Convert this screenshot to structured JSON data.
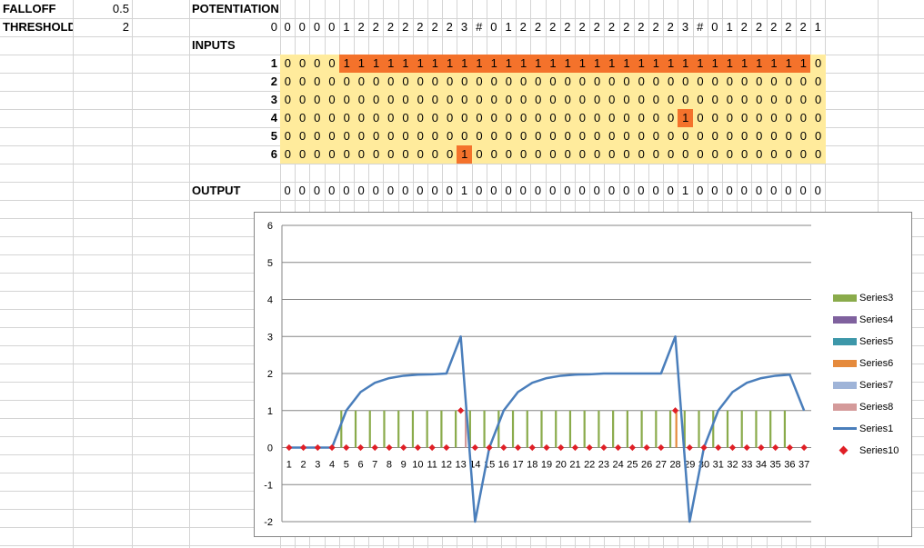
{
  "params": [
    {
      "label": "FALLOFF",
      "value": "0.5"
    },
    {
      "label": "THRESHOLD",
      "value": "2"
    }
  ],
  "potentiation": {
    "label": "POTENTIATION",
    "row_index": "0",
    "values": [
      "0",
      "0",
      "0",
      "0",
      "1",
      "2",
      "2",
      "2",
      "2",
      "2",
      "2",
      "2",
      "3",
      "#",
      "0",
      "1",
      "2",
      "2",
      "2",
      "2",
      "2",
      "2",
      "2",
      "2",
      "2",
      "2",
      "2",
      "3",
      "#",
      "0",
      "1",
      "2",
      "2",
      "2",
      "2",
      "2",
      "1"
    ]
  },
  "inputs": {
    "label": "INPUTS",
    "rows": [
      {
        "index": "1",
        "values": [
          "0",
          "0",
          "0",
          "0",
          "1",
          "1",
          "1",
          "1",
          "1",
          "1",
          "1",
          "1",
          "1",
          "1",
          "1",
          "1",
          "1",
          "1",
          "1",
          "1",
          "1",
          "1",
          "1",
          "1",
          "1",
          "1",
          "1",
          "1",
          "1",
          "1",
          "1",
          "1",
          "1",
          "1",
          "1",
          "1",
          "0"
        ]
      },
      {
        "index": "2",
        "values": [
          "0",
          "0",
          "0",
          "0",
          "0",
          "0",
          "0",
          "0",
          "0",
          "0",
          "0",
          "0",
          "0",
          "0",
          "0",
          "0",
          "0",
          "0",
          "0",
          "0",
          "0",
          "0",
          "0",
          "0",
          "0",
          "0",
          "0",
          "0",
          "0",
          "0",
          "0",
          "0",
          "0",
          "0",
          "0",
          "0",
          "0"
        ]
      },
      {
        "index": "3",
        "values": [
          "0",
          "0",
          "0",
          "0",
          "0",
          "0",
          "0",
          "0",
          "0",
          "0",
          "0",
          "0",
          "0",
          "0",
          "0",
          "0",
          "0",
          "0",
          "0",
          "0",
          "0",
          "0",
          "0",
          "0",
          "0",
          "0",
          "0",
          "0",
          "0",
          "0",
          "0",
          "0",
          "0",
          "0",
          "0",
          "0",
          "0"
        ]
      },
      {
        "index": "4",
        "values": [
          "0",
          "0",
          "0",
          "0",
          "0",
          "0",
          "0",
          "0",
          "0",
          "0",
          "0",
          "0",
          "0",
          "0",
          "0",
          "0",
          "0",
          "0",
          "0",
          "0",
          "0",
          "0",
          "0",
          "0",
          "0",
          "0",
          "0",
          "1",
          "0",
          "0",
          "0",
          "0",
          "0",
          "0",
          "0",
          "0",
          "0"
        ]
      },
      {
        "index": "5",
        "values": [
          "0",
          "0",
          "0",
          "0",
          "0",
          "0",
          "0",
          "0",
          "0",
          "0",
          "0",
          "0",
          "0",
          "0",
          "0",
          "0",
          "0",
          "0",
          "0",
          "0",
          "0",
          "0",
          "0",
          "0",
          "0",
          "0",
          "0",
          "0",
          "0",
          "0",
          "0",
          "0",
          "0",
          "0",
          "0",
          "0",
          "0"
        ]
      },
      {
        "index": "6",
        "values": [
          "0",
          "0",
          "0",
          "0",
          "0",
          "0",
          "0",
          "0",
          "0",
          "0",
          "0",
          "0",
          "1",
          "0",
          "0",
          "0",
          "0",
          "0",
          "0",
          "0",
          "0",
          "0",
          "0",
          "0",
          "0",
          "0",
          "0",
          "0",
          "0",
          "0",
          "0",
          "0",
          "0",
          "0",
          "0",
          "0",
          "0"
        ]
      }
    ]
  },
  "output": {
    "label": "OUTPUT",
    "values": [
      "0",
      "0",
      "0",
      "0",
      "0",
      "0",
      "0",
      "0",
      "0",
      "0",
      "0",
      "0",
      "1",
      "0",
      "0",
      "0",
      "0",
      "0",
      "0",
      "0",
      "0",
      "0",
      "0",
      "0",
      "0",
      "0",
      "0",
      "1",
      "0",
      "0",
      "0",
      "0",
      "0",
      "0",
      "0",
      "0",
      "0"
    ]
  },
  "colors": {
    "input_fill": "#ffeb9c",
    "input_active": "#f4722b",
    "gridline": "#d4d4d4",
    "series1": "#4a7ebb",
    "series10": "#e01f26"
  },
  "chart_data": {
    "type": "line",
    "categories": [
      "1",
      "2",
      "3",
      "4",
      "5",
      "6",
      "7",
      "8",
      "9",
      "10",
      "11",
      "12",
      "13",
      "14",
      "15",
      "16",
      "17",
      "18",
      "19",
      "20",
      "21",
      "22",
      "23",
      "24",
      "25",
      "26",
      "27",
      "28",
      "29",
      "30",
      "31",
      "32",
      "33",
      "34",
      "35",
      "36",
      "37"
    ],
    "ylim": [
      -2,
      6
    ],
    "yticks": [
      "-2",
      "-1",
      "0",
      "1",
      "2",
      "3",
      "4",
      "5",
      "6"
    ],
    "grid": true,
    "legend_position": "right",
    "series": [
      {
        "name": "Series3",
        "kind": "column",
        "color": "#8aab4b",
        "values": [
          0,
          0,
          0,
          0,
          1,
          1,
          1,
          1,
          1,
          1,
          1,
          1,
          1,
          1,
          1,
          1,
          1,
          1,
          1,
          1,
          1,
          1,
          1,
          1,
          1,
          1,
          1,
          1,
          1,
          1,
          1,
          1,
          1,
          1,
          1,
          1,
          0
        ]
      },
      {
        "name": "Series4",
        "kind": "column",
        "color": "#7f619e",
        "values": [
          0,
          0,
          0,
          0,
          0,
          0,
          0,
          0,
          0,
          0,
          0,
          0,
          0,
          0,
          0,
          0,
          0,
          0,
          0,
          0,
          0,
          0,
          0,
          0,
          0,
          0,
          0,
          0,
          0,
          0,
          0,
          0,
          0,
          0,
          0,
          0,
          0
        ]
      },
      {
        "name": "Series5",
        "kind": "column",
        "color": "#3d97a9",
        "values": [
          0,
          0,
          0,
          0,
          0,
          0,
          0,
          0,
          0,
          0,
          0,
          0,
          0,
          0,
          0,
          0,
          0,
          0,
          0,
          0,
          0,
          0,
          0,
          0,
          0,
          0,
          0,
          0,
          0,
          0,
          0,
          0,
          0,
          0,
          0,
          0,
          0
        ]
      },
      {
        "name": "Series6",
        "kind": "column",
        "color": "#e58a3c",
        "values": [
          0,
          0,
          0,
          0,
          0,
          0,
          0,
          0,
          0,
          0,
          0,
          0,
          0,
          0,
          0,
          0,
          0,
          0,
          0,
          0,
          0,
          0,
          0,
          0,
          0,
          0,
          0,
          1,
          0,
          0,
          0,
          0,
          0,
          0,
          0,
          0,
          0
        ]
      },
      {
        "name": "Series7",
        "kind": "column",
        "color": "#9fb4d8",
        "values": [
          0,
          0,
          0,
          0,
          0,
          0,
          0,
          0,
          0,
          0,
          0,
          0,
          0,
          0,
          0,
          0,
          0,
          0,
          0,
          0,
          0,
          0,
          0,
          0,
          0,
          0,
          0,
          0,
          0,
          0,
          0,
          0,
          0,
          0,
          0,
          0,
          0
        ]
      },
      {
        "name": "Series8",
        "kind": "column",
        "color": "#d49a9a",
        "values": [
          0,
          0,
          0,
          0,
          0,
          0,
          0,
          0,
          0,
          0,
          0,
          0,
          1,
          0,
          0,
          0,
          0,
          0,
          0,
          0,
          0,
          0,
          0,
          0,
          0,
          0,
          0,
          0,
          0,
          0,
          0,
          0,
          0,
          0,
          0,
          0,
          0
        ]
      },
      {
        "name": "Series1",
        "kind": "line",
        "color": "#4a7ebb",
        "values": [
          0,
          0,
          0,
          0,
          1,
          1.5,
          1.75,
          1.875,
          1.94,
          1.97,
          1.98,
          2,
          3,
          -2,
          0,
          1,
          1.5,
          1.75,
          1.875,
          1.94,
          1.97,
          1.98,
          2,
          2,
          2,
          2,
          2,
          3,
          -2,
          0,
          1,
          1.5,
          1.75,
          1.875,
          1.94,
          1.97,
          1
        ]
      },
      {
        "name": "Series10",
        "kind": "marker",
        "color": "#e01f26",
        "values": [
          0,
          0,
          0,
          0,
          0,
          0,
          0,
          0,
          0,
          0,
          0,
          0,
          1,
          0,
          0,
          0,
          0,
          0,
          0,
          0,
          0,
          0,
          0,
          0,
          0,
          0,
          0,
          1,
          0,
          0,
          0,
          0,
          0,
          0,
          0,
          0,
          0
        ]
      }
    ]
  }
}
